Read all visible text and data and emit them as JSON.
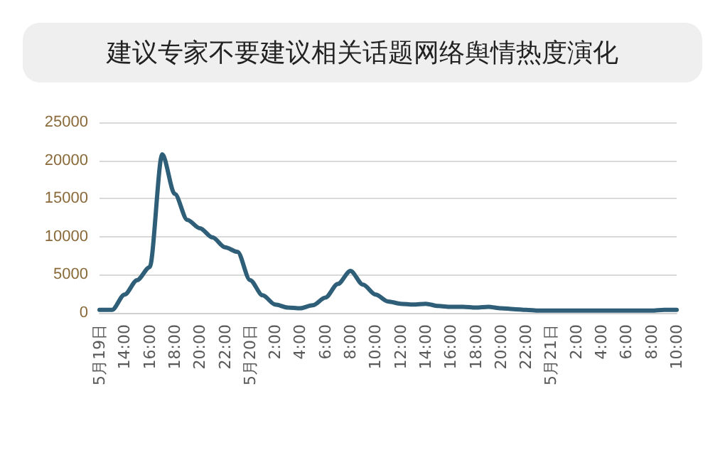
{
  "chart_data": {
    "type": "line",
    "title": "建议专家不要建议相关话题网络舆情热度演化",
    "categories": [
      "5月19日",
      null,
      "14:00",
      null,
      "16:00",
      null,
      "18:00",
      null,
      "20:00",
      null,
      "22:00",
      null,
      "5月20日",
      null,
      "2:00",
      null,
      "4:00",
      null,
      "6:00",
      null,
      "8:00",
      null,
      "10:00",
      null,
      "12:00",
      null,
      "14:00",
      null,
      "16:00",
      null,
      "18:00",
      null,
      "20:00",
      null,
      "22:00",
      null,
      "5月21日",
      null,
      "2:00",
      null,
      "4:00",
      null,
      "6:00",
      null,
      "8:00",
      null,
      "10:00"
    ],
    "series": [
      {
        "color": "#2f5f78",
        "values": [
          400,
          400,
          2400,
          4300,
          6000,
          20800,
          15600,
          12200,
          11100,
          9900,
          8600,
          8000,
          4300,
          2300,
          1100,
          700,
          600,
          1000,
          2000,
          3800,
          5500,
          3700,
          2400,
          1500,
          1200,
          1100,
          1200,
          900,
          800,
          800,
          700,
          800,
          600,
          500,
          400,
          300,
          300,
          300,
          300,
          300,
          300,
          300,
          300,
          300,
          300,
          400,
          400
        ]
      }
    ],
    "ylim": [
      0,
      25000
    ],
    "yticks": [
      0,
      5000,
      10000,
      15000,
      20000,
      25000
    ],
    "grid": "y",
    "marker": "none",
    "line_style": "solid"
  }
}
